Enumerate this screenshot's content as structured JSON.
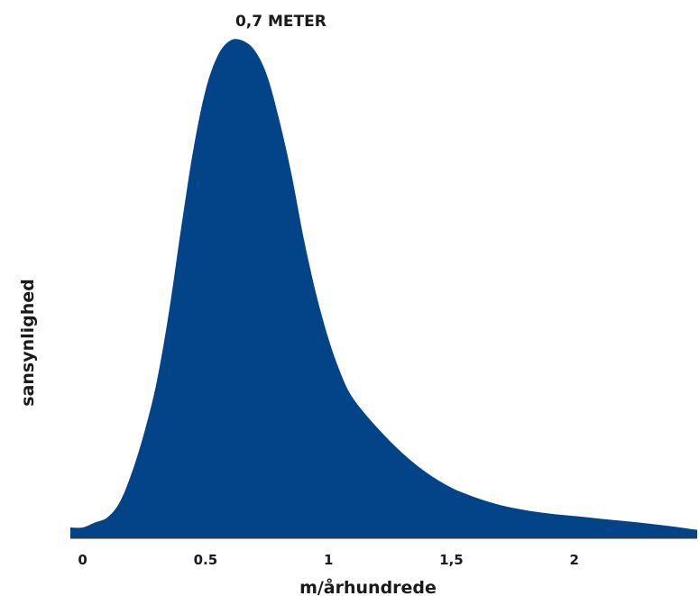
{
  "chart_data": {
    "type": "area",
    "title": "",
    "xlabel": "m/århundrede",
    "ylabel": "sansynlighed",
    "xlim": [
      -0.05,
      2.5
    ],
    "ylim": [
      0,
      1
    ],
    "grid": false,
    "legend": "none",
    "fill_color": "#034488",
    "annotation": {
      "text": "0,7 METER",
      "x": 0.7
    },
    "xticks": [
      {
        "value": 0,
        "label": "0"
      },
      {
        "value": 0.5,
        "label": "0.5"
      },
      {
        "value": 1,
        "label": "1"
      },
      {
        "value": 1.5,
        "label": "1,5"
      },
      {
        "value": 2,
        "label": "2"
      }
    ],
    "series": [
      {
        "x": [
          -0.05,
          0.0,
          0.05,
          0.1,
          0.15,
          0.2,
          0.25,
          0.3,
          0.35,
          0.4,
          0.45,
          0.5,
          0.55,
          0.6,
          0.65,
          0.7,
          0.75,
          0.8,
          0.85,
          0.9,
          0.95,
          1.0,
          1.05,
          1.1,
          1.2,
          1.3,
          1.4,
          1.5,
          1.6,
          1.7,
          1.8,
          1.9,
          2.0,
          2.1,
          2.2,
          2.3,
          2.4,
          2.5
        ],
        "y": [
          0.02,
          0.02,
          0.03,
          0.04,
          0.07,
          0.13,
          0.21,
          0.31,
          0.45,
          0.62,
          0.78,
          0.9,
          0.97,
          1.0,
          1.0,
          0.98,
          0.93,
          0.84,
          0.73,
          0.6,
          0.49,
          0.4,
          0.33,
          0.28,
          0.22,
          0.17,
          0.13,
          0.1,
          0.08,
          0.065,
          0.055,
          0.048,
          0.043,
          0.038,
          0.033,
          0.028,
          0.022,
          0.015
        ]
      }
    ]
  }
}
